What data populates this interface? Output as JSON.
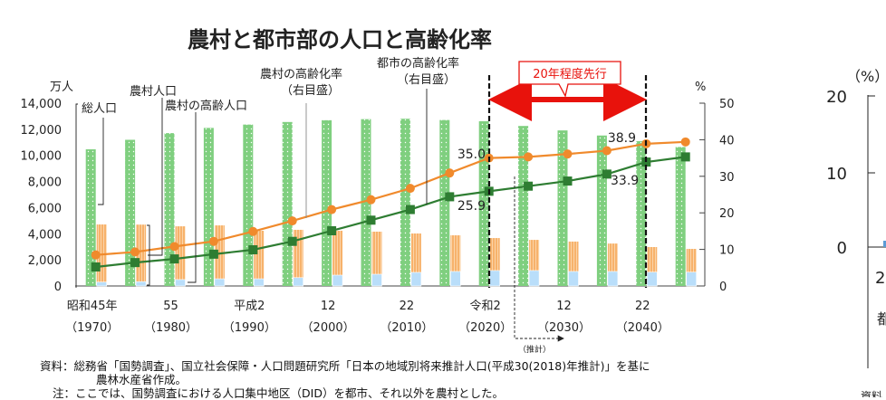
{
  "chart_data": {
    "type": "bar",
    "title": "農村と都市部の人口と高齢化率",
    "left_axis": {
      "unit": "万人",
      "ylim": [
        0,
        14000
      ],
      "ticks": [
        "0",
        "2,000",
        "4,000",
        "6,000",
        "8,000",
        "10,000",
        "12,000",
        "14,000"
      ]
    },
    "right_axis": {
      "unit": "%",
      "ylim": [
        0,
        50
      ],
      "ticks": [
        "0",
        "10",
        "20",
        "30",
        "40",
        "50"
      ]
    },
    "categories": [
      1970,
      1975,
      1980,
      1985,
      1990,
      1995,
      2000,
      2005,
      2010,
      2015,
      2020,
      2025,
      2030,
      2035,
      2040,
      2045
    ],
    "x_tick_labels": [
      {
        "category": 1970,
        "era": "昭和45年",
        "year": "（1970）"
      },
      {
        "category": 1980,
        "era": "55",
        "year": "（1980）"
      },
      {
        "category": 1990,
        "era": "平成2",
        "year": "（1990）"
      },
      {
        "category": 2000,
        "era": "12",
        "year": "（2000）"
      },
      {
        "category": 2010,
        "era": "22",
        "year": "（2010）"
      },
      {
        "category": 2020,
        "era": "令和2",
        "year": "（2020）"
      },
      {
        "category": 2030,
        "era": "12",
        "year": "（2030）"
      },
      {
        "category": 2040,
        "era": "22",
        "year": "（2040）"
      }
    ],
    "series": [
      {
        "name": "総人口",
        "kind": "bar",
        "axis": "left",
        "color": "#7fcf7f",
        "values": [
          10467,
          11194,
          11706,
          12105,
          12361,
          12557,
          12693,
          12777,
          12806,
          12709,
          12615,
          12254,
          11913,
          11522,
          11092,
          10642
        ]
      },
      {
        "name": "農村人口",
        "kind": "stacked-bar",
        "axis": "left",
        "color": "#f7b26b",
        "values": [
          4710,
          4700,
          4570,
          4640,
          4230,
          4300,
          4230,
          4160,
          4020,
          3880,
          3670,
          3530,
          3400,
          3250,
          2980,
          2840
        ]
      },
      {
        "name": "農村の高齢人口",
        "kind": "bar-overlay",
        "axis": "left",
        "color": "#b9defa",
        "values": [
          300,
          330,
          490,
          550,
          550,
          640,
          830,
          900,
          1040,
          1110,
          1180,
          1180,
          1110,
          1110,
          1060,
          1060
        ]
      },
      {
        "name": "農村の高齢化率",
        "kind": "line",
        "axis": "right",
        "color": "#f08a2c",
        "values": [
          8.5,
          9.3,
          10.8,
          12.2,
          14.9,
          17.8,
          20.9,
          23.6,
          26.7,
          30.9,
          35.0,
          35.3,
          36.1,
          37.0,
          38.9,
          39.4
        ]
      },
      {
        "name": "都市の高齢化率",
        "kind": "line",
        "axis": "right",
        "color": "#2e7d32",
        "values": [
          5.2,
          6.4,
          7.4,
          8.7,
          9.9,
          12.2,
          15.1,
          18.0,
          20.9,
          24.4,
          25.9,
          27.3,
          28.7,
          30.6,
          33.9,
          35.3
        ]
      }
    ],
    "data_labels": [
      {
        "series": "農村の高齢化率",
        "category": 2020,
        "text": "35.0"
      },
      {
        "series": "都市の高齢化率",
        "category": 2020,
        "text": "25.9"
      },
      {
        "series": "農村の高齢化率",
        "category": 2040,
        "text": "38.9"
      },
      {
        "series": "都市の高齢化率",
        "category": 2040,
        "text": "33.9"
      }
    ],
    "annotations": {
      "total_pop": "総人口",
      "rural_pop": "農村人口",
      "rural_elderly": "農村の高齢人口",
      "rural_rate_1": "農村の高齢化率",
      "rural_rate_2": "（右目盛）",
      "urban_rate_1": "都市の高齢化率",
      "urban_rate_2": "（右目盛）",
      "lead_box": "20年程度先行",
      "projection": "（推計）"
    },
    "lead_color": "#e8120c",
    "grid": false
  },
  "notes": {
    "source_1": "資料：総務省「国勢調査」、国立社会保障・人口問題研究所「日本の地域別将来推計人口(平成30(2018)年推計)」を基に",
    "source_2": "農林水産省作成。",
    "note": "注：ここでは、国勢調査における人口集中地区（DID）を都市、それ以外を農村とした。"
  },
  "clipped_chart": {
    "unit": "（%）",
    "ticks": [
      "20",
      "10",
      "0"
    ],
    "x_label_fragment": "2",
    "label_fragment": "都",
    "source_fragment": "資料"
  }
}
